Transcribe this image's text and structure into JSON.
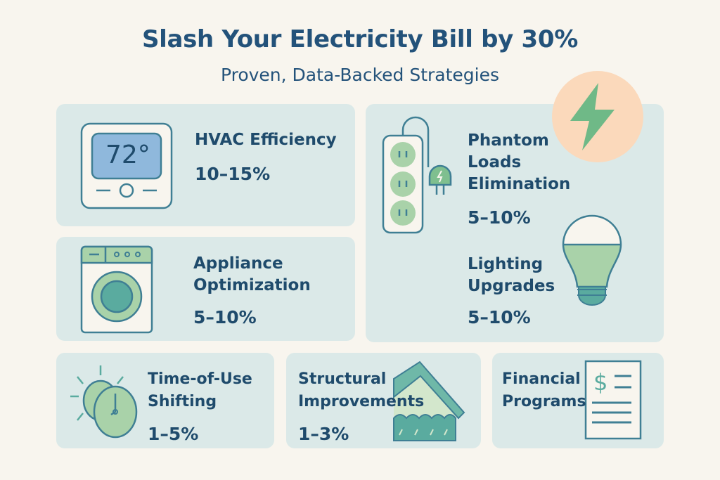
{
  "header": {
    "title": "Slash Your Electricity Bill by 30%",
    "subtitle": "Proven, Data-Backed Strategies"
  },
  "strategies": [
    {
      "label": "HVAC Efficiency",
      "savings": "10–15%",
      "icon": "thermostat-icon",
      "display": "72°"
    },
    {
      "label": "Appliance\nOptimization",
      "savings": "5–10%",
      "icon": "washing-machine-icon"
    },
    {
      "label": "Phantom\nLoads\nElimination",
      "savings": "5–10%",
      "icon": "power-strip-icon"
    },
    {
      "label": "Lighting\nUpgrades",
      "savings": "5–10%",
      "icon": "light-bulb-icon"
    },
    {
      "label": "Time-of-Use\nShifting",
      "savings": "1–5%",
      "icon": "clock-sun-icon"
    },
    {
      "label": "Structural\nImprovements",
      "savings": "1–3%",
      "icon": "house-insulation-icon"
    },
    {
      "label": "Financial\nPrograms",
      "icon": "dollar-document-icon"
    }
  ],
  "colors": {
    "background": "#f8f5ee",
    "card": "#dbe9e8",
    "text": "#1f4b6c",
    "accent_green": "#7fbf8f",
    "accent_teal": "#5aab9f",
    "accent_peach": "#fbd9bb",
    "screen_blue": "#8fb8dc"
  }
}
